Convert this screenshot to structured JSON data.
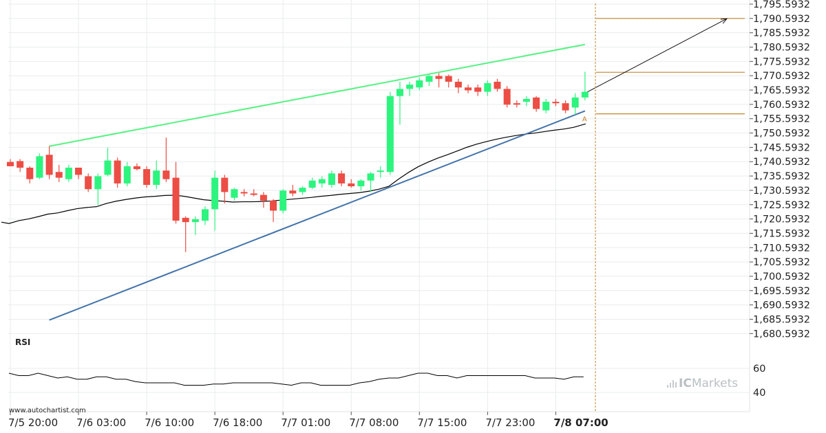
{
  "chart_data": {
    "type": "candlestick",
    "y_axis": {
      "min": 1676.5932,
      "max": 1795.5932,
      "ticks": [
        "1,795.5932",
        "1,790.5932",
        "1,785.5932",
        "1,780.5932",
        "1,775.5932",
        "1,770.5932",
        "1,765.5932",
        "1,760.5932",
        "1,755.5932",
        "1,750.5932",
        "1,745.5932",
        "1,740.5932",
        "1,735.5932",
        "1,730.5932",
        "1,725.5932",
        "1,720.5932",
        "1,715.5932",
        "1,710.5932",
        "1,705.5932",
        "1,700.5932",
        "1,695.5932",
        "1,690.5932",
        "1,685.5932",
        "1,680.5932"
      ],
      "tick_values": [
        1795.5932,
        1790.5932,
        1785.5932,
        1780.5932,
        1775.5932,
        1770.5932,
        1765.5932,
        1760.5932,
        1755.5932,
        1750.5932,
        1745.5932,
        1740.5932,
        1735.5932,
        1730.5932,
        1725.5932,
        1720.5932,
        1715.5932,
        1710.5932,
        1705.5932,
        1700.5932,
        1695.5932,
        1690.5932,
        1685.5932,
        1680.5932
      ]
    },
    "x_axis": {
      "labels": [
        "7/5 20:00",
        "7/6 03:00",
        "7/6 10:00",
        "7/6 18:00",
        "7/7 01:00",
        "7/7 08:00",
        "7/7 15:00",
        "7/7 23:00",
        "7/8 07:00"
      ],
      "label_bar_index": [
        0,
        7,
        14,
        21,
        28,
        35,
        42,
        49,
        56
      ],
      "bold_label_index": 8
    },
    "candles": [
      {
        "o": 1740.5,
        "h": 1741.5,
        "l": 1739.0,
        "c": 1739.0
      },
      {
        "o": 1740.8,
        "h": 1741.5,
        "l": 1737.0,
        "c": 1738.5
      },
      {
        "o": 1738.5,
        "h": 1739.0,
        "l": 1733.0,
        "c": 1734.5
      },
      {
        "o": 1735.0,
        "h": 1743.5,
        "l": 1734.5,
        "c": 1742.5
      },
      {
        "o": 1743.0,
        "h": 1746.0,
        "l": 1734.5,
        "c": 1736.0
      },
      {
        "o": 1737.0,
        "h": 1739.5,
        "l": 1733.5,
        "c": 1735.0
      },
      {
        "o": 1734.5,
        "h": 1739.5,
        "l": 1733.5,
        "c": 1738.5
      },
      {
        "o": 1738.5,
        "h": 1738.5,
        "l": 1734.5,
        "c": 1736.0
      },
      {
        "o": 1735.5,
        "h": 1736.5,
        "l": 1730.0,
        "c": 1731.0
      },
      {
        "o": 1731.0,
        "h": 1736.5,
        "l": 1725.5,
        "c": 1735.5
      },
      {
        "o": 1736.0,
        "h": 1745.5,
        "l": 1735.5,
        "c": 1741.0
      },
      {
        "o": 1741.0,
        "h": 1742.0,
        "l": 1731.5,
        "c": 1733.0
      },
      {
        "o": 1733.0,
        "h": 1740.5,
        "l": 1732.0,
        "c": 1739.0
      },
      {
        "o": 1739.0,
        "h": 1740.0,
        "l": 1737.5,
        "c": 1738.0
      },
      {
        "o": 1738.0,
        "h": 1739.0,
        "l": 1731.5,
        "c": 1732.5
      },
      {
        "o": 1732.5,
        "h": 1741.0,
        "l": 1731.0,
        "c": 1737.5
      },
      {
        "o": 1737.5,
        "h": 1749.0,
        "l": 1733.5,
        "c": 1734.5
      },
      {
        "o": 1735.0,
        "h": 1740.5,
        "l": 1719.0,
        "c": 1720.0
      },
      {
        "o": 1721.0,
        "h": 1721.5,
        "l": 1709.0,
        "c": 1719.5
      },
      {
        "o": 1719.5,
        "h": 1721.5,
        "l": 1715.0,
        "c": 1720.5
      },
      {
        "o": 1720.0,
        "h": 1725.0,
        "l": 1718.5,
        "c": 1724.0
      },
      {
        "o": 1724.0,
        "h": 1737.5,
        "l": 1716.5,
        "c": 1735.0
      },
      {
        "o": 1735.0,
        "h": 1736.0,
        "l": 1726.0,
        "c": 1730.0
      },
      {
        "o": 1728.0,
        "h": 1731.5,
        "l": 1727.0,
        "c": 1731.0
      },
      {
        "o": 1730.0,
        "h": 1731.0,
        "l": 1728.5,
        "c": 1729.5
      },
      {
        "o": 1729.5,
        "h": 1731.0,
        "l": 1728.5,
        "c": 1729.0
      },
      {
        "o": 1729.0,
        "h": 1730.0,
        "l": 1724.5,
        "c": 1727.0
      },
      {
        "o": 1727.0,
        "h": 1727.5,
        "l": 1719.5,
        "c": 1723.5
      },
      {
        "o": 1723.5,
        "h": 1731.0,
        "l": 1722.5,
        "c": 1730.5
      },
      {
        "o": 1730.5,
        "h": 1732.5,
        "l": 1728.5,
        "c": 1729.5
      },
      {
        "o": 1730.0,
        "h": 1732.0,
        "l": 1729.0,
        "c": 1731.5
      },
      {
        "o": 1731.5,
        "h": 1735.0,
        "l": 1731.0,
        "c": 1734.0
      },
      {
        "o": 1733.0,
        "h": 1735.5,
        "l": 1731.5,
        "c": 1734.5
      },
      {
        "o": 1732.5,
        "h": 1737.5,
        "l": 1731.5,
        "c": 1736.5
      },
      {
        "o": 1736.5,
        "h": 1737.5,
        "l": 1732.0,
        "c": 1733.0
      },
      {
        "o": 1733.0,
        "h": 1734.5,
        "l": 1731.5,
        "c": 1732.0
      },
      {
        "o": 1732.0,
        "h": 1734.5,
        "l": 1730.5,
        "c": 1734.0
      },
      {
        "o": 1734.0,
        "h": 1737.0,
        "l": 1730.0,
        "c": 1736.5
      },
      {
        "o": 1737.0,
        "h": 1739.0,
        "l": 1735.0,
        "c": 1737.5
      },
      {
        "o": 1737.0,
        "h": 1765.0,
        "l": 1736.0,
        "c": 1763.5
      },
      {
        "o": 1763.5,
        "h": 1768.5,
        "l": 1753.5,
        "c": 1766.0
      },
      {
        "o": 1766.0,
        "h": 1768.5,
        "l": 1763.5,
        "c": 1767.5
      },
      {
        "o": 1766.5,
        "h": 1770.0,
        "l": 1765.5,
        "c": 1769.0
      },
      {
        "o": 1768.5,
        "h": 1771.0,
        "l": 1767.0,
        "c": 1770.5
      },
      {
        "o": 1770.5,
        "h": 1771.5,
        "l": 1766.5,
        "c": 1769.5
      },
      {
        "o": 1770.5,
        "h": 1771.0,
        "l": 1766.5,
        "c": 1768.5
      },
      {
        "o": 1768.5,
        "h": 1769.5,
        "l": 1764.5,
        "c": 1766.5
      },
      {
        "o": 1766.5,
        "h": 1767.5,
        "l": 1764.5,
        "c": 1765.5
      },
      {
        "o": 1766.5,
        "h": 1767.5,
        "l": 1763.5,
        "c": 1765.0
      },
      {
        "o": 1765.0,
        "h": 1769.0,
        "l": 1763.5,
        "c": 1768.0
      },
      {
        "o": 1768.5,
        "h": 1769.5,
        "l": 1765.0,
        "c": 1766.0
      },
      {
        "o": 1766.0,
        "h": 1767.0,
        "l": 1759.5,
        "c": 1760.5
      },
      {
        "o": 1761.0,
        "h": 1762.0,
        "l": 1759.5,
        "c": 1760.5
      },
      {
        "o": 1761.5,
        "h": 1763.5,
        "l": 1760.0,
        "c": 1762.5
      },
      {
        "o": 1763.0,
        "h": 1763.5,
        "l": 1758.0,
        "c": 1759.0
      },
      {
        "o": 1758.5,
        "h": 1762.5,
        "l": 1757.5,
        "c": 1761.5
      },
      {
        "o": 1761.5,
        "h": 1762.5,
        "l": 1760.0,
        "c": 1761.0
      },
      {
        "o": 1761.0,
        "h": 1762.0,
        "l": 1757.5,
        "c": 1758.5
      },
      {
        "o": 1759.5,
        "h": 1764.5,
        "l": 1757.0,
        "c": 1763.0
      },
      {
        "o": 1763.0,
        "h": 1772.0,
        "l": 1762.0,
        "c": 1765.0
      }
    ],
    "moving_average": [
      1719.0,
      1720.0,
      1720.6,
      1721.4,
      1722.3,
      1722.7,
      1723.5,
      1724.2,
      1724.6,
      1724.9,
      1726.0,
      1726.8,
      1727.4,
      1727.9,
      1728.3,
      1728.5,
      1728.8,
      1728.9,
      1728.5,
      1727.9,
      1727.3,
      1727.0,
      1726.8,
      1726.5,
      1726.6,
      1726.6,
      1726.7,
      1726.9,
      1727.2,
      1727.5,
      1727.8,
      1728.1,
      1728.5,
      1728.8,
      1729.2,
      1729.5,
      1729.8,
      1730.3,
      1731.0,
      1732.0,
      1734.5,
      1736.8,
      1738.8,
      1740.4,
      1741.8,
      1743.0,
      1744.3,
      1745.6,
      1746.7,
      1747.6,
      1748.4,
      1749.1,
      1749.7,
      1750.2,
      1750.6,
      1751.1,
      1751.6,
      1752.0,
      1752.6,
      1753.6
    ],
    "resistance_line": {
      "from_bar": 4,
      "from_price": 1746.0,
      "to_bar": 59,
      "to_price": 1781.5
    },
    "support_line": {
      "from_bar": 4,
      "from_price": 1685.3,
      "to_bar": 59,
      "to_price": 1758.3
    },
    "projection_arrow": {
      "from_bar": 59,
      "from_price": 1764.5,
      "to_bar": 73,
      "to_price": 1790.5
    },
    "levels": [
      1790.6,
      1771.8,
      1757.3
    ],
    "marker": {
      "bar": 59,
      "price": 1755.4,
      "text": "A"
    },
    "rsi": {
      "label": "RSI",
      "ticks": [
        "60",
        "40"
      ],
      "tick_values": [
        60,
        40
      ],
      "min": 32,
      "max": 72,
      "values": [
        56,
        54,
        54,
        56,
        54,
        52,
        53,
        51,
        51,
        53,
        53,
        51,
        51,
        49,
        48,
        48,
        48,
        48,
        46,
        46,
        46,
        47,
        47,
        48,
        48,
        48,
        48,
        48,
        47,
        46,
        48,
        48,
        46,
        46,
        46,
        46,
        48,
        49,
        51,
        52,
        52,
        54,
        56,
        56,
        54,
        54,
        52,
        54,
        54,
        54,
        54,
        54,
        54,
        54,
        52,
        52,
        52,
        51,
        53,
        53
      ]
    },
    "colors": {
      "bull": "#2df47e",
      "bear": "#ec4d44",
      "ma": "#000000",
      "resistance": "#56f282",
      "support": "#4473a9",
      "level": "#c3822d",
      "grid": "#e9ebed"
    }
  },
  "watermark": "www.autochartist.com",
  "brand": {
    "prefix": "IC",
    "name": "Markets"
  }
}
